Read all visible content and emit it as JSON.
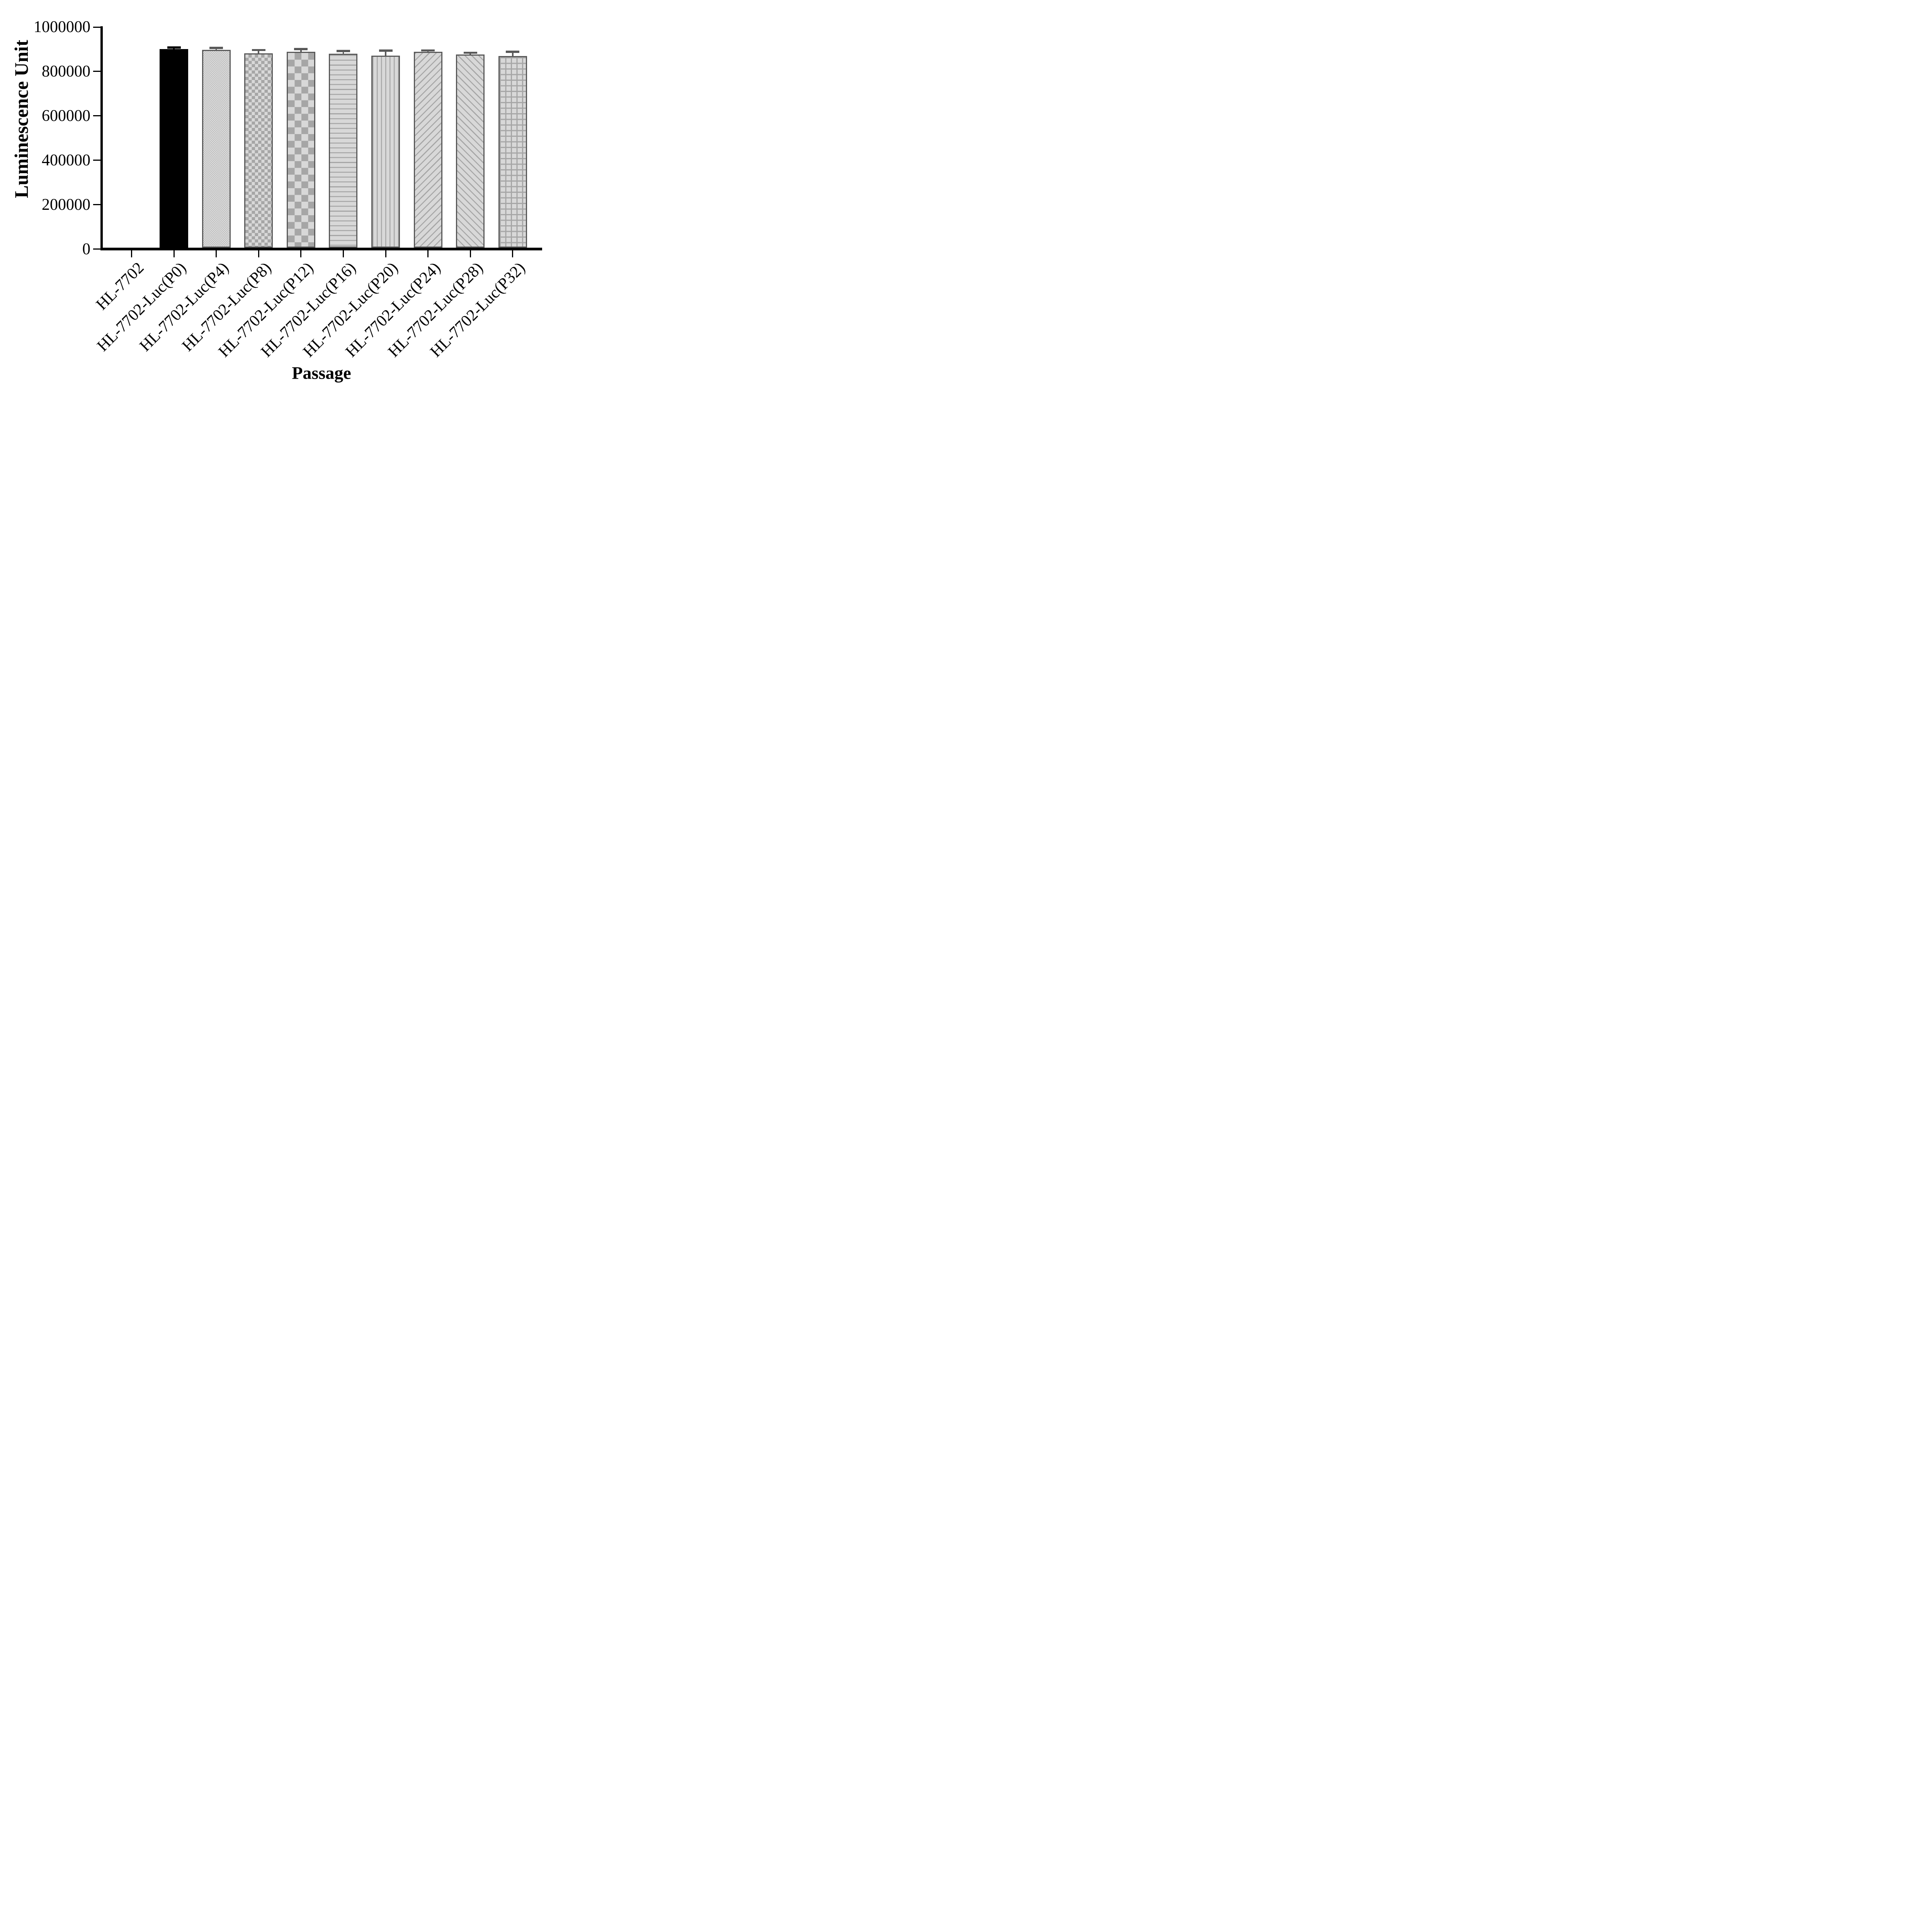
{
  "chart_data": {
    "type": "bar",
    "title": "",
    "xlabel": "Passage",
    "ylabel": "Luminescence Unit",
    "categories": [
      "HL-7702",
      "HL-7702-Luc(P0)",
      "HL-7702-Luc(P4)",
      "HL-7702-Luc(P8)",
      "HL-7702-Luc(P12)",
      "HL-7702-Luc(P16)",
      "HL-7702-Luc(P20)",
      "HL-7702-Luc(P24)",
      "HL-7702-Luc(P28)",
      "HL-7702-Luc(P32)"
    ],
    "values": [
      0,
      901000,
      897000,
      882000,
      888000,
      880000,
      872000,
      888000,
      876000,
      870000
    ],
    "errors_upper": [
      0,
      7000,
      9000,
      14000,
      13000,
      12000,
      22000,
      7000,
      8000,
      19000
    ],
    "error_style": "upper-whisker-with-cap",
    "ylim": [
      0,
      1000000
    ],
    "yticks": [
      0,
      200000,
      400000,
      600000,
      800000,
      1000000
    ],
    "ytick_labels": [
      "0",
      "200000",
      "400000",
      "600000",
      "800000",
      "1000000"
    ],
    "bar_patterns": [
      "none",
      "solid",
      "dots",
      "checker-fine",
      "checker-coarse",
      "hlines",
      "vlines",
      "diag-up",
      "diag-down",
      "grid"
    ],
    "grid": false,
    "legend": null,
    "colors": {
      "solid_bar": "#000000",
      "bar_border": "#595959",
      "pattern_background": "#d8d8d8",
      "pattern_foreground": "#a6a6a6",
      "error_bar_patterned": "#595959",
      "error_bar_solid": "#000000",
      "axis": "#000000",
      "text": "#000000",
      "background": "#ffffff"
    }
  }
}
